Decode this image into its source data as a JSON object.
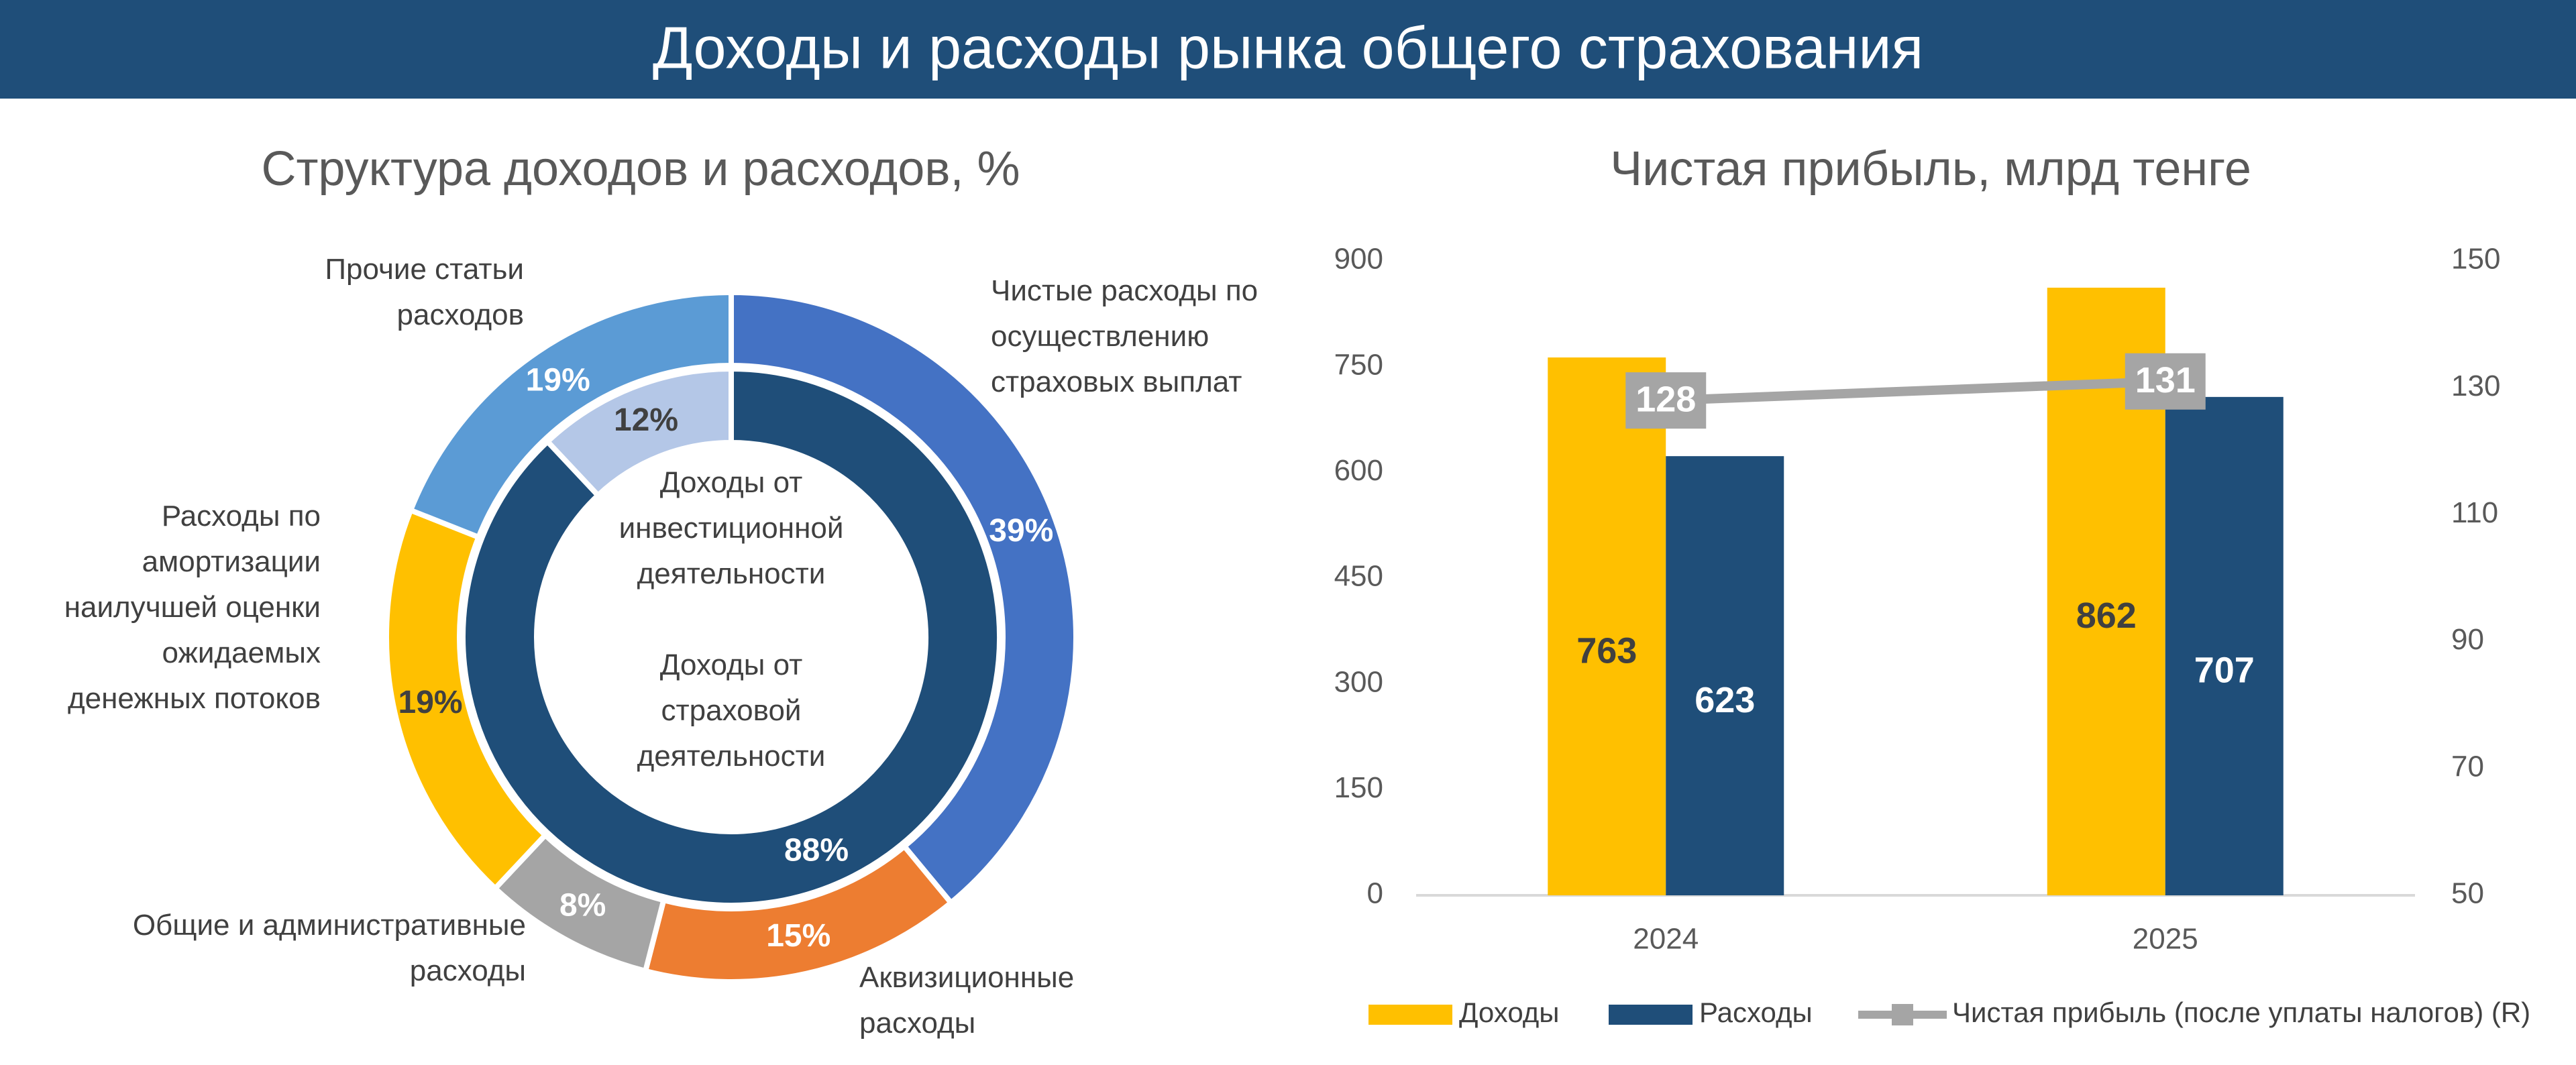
{
  "header": {
    "title": "Доходы и расходы рынка общего страхования"
  },
  "chart_data": [
    {
      "type": "donut",
      "title": "Структура доходов и расходов, %",
      "series": [
        {
          "categories": [
            "Чистые расходы по осуществлению страховых выплат",
            "Аквизиционные расходы",
            "Общие и административные расходы",
            "Расходы по амортизации наилучшей оценки ожидаемых денежных потоков",
            "Прочие статьи расходов"
          ],
          "values": [
            39,
            15,
            8,
            19,
            19
          ],
          "value_labels": [
            "39%",
            "15%",
            "8%",
            "19%",
            "19%"
          ],
          "colors": [
            "#4472c4",
            "#ed7d31",
            "#a5a5a5",
            "#ffc000",
            "#5b9bd5"
          ]
        },
        {
          "categories": [
            "Доходы от страховой деятельности",
            "Доходы от инвестиционной деятельности"
          ],
          "values": [
            88,
            12
          ],
          "value_labels": [
            "88%",
            "12%"
          ],
          "colors": [
            "#1f4e79",
            "#b4c7e7"
          ]
        }
      ]
    },
    {
      "type": "bar",
      "title": "Чистая прибыль, млрд тенге",
      "categories": [
        "2024",
        "2025"
      ],
      "series": [
        {
          "name": "Доходы",
          "type": "bar",
          "color": "#ffc000",
          "values": [
            763,
            862
          ]
        },
        {
          "name": "Расходы",
          "type": "bar",
          "color": "#1f4e79",
          "values": [
            623,
            707
          ]
        },
        {
          "name": "Чистая прибыль (после уплаты налогов) (R)",
          "type": "line",
          "axis": "y2",
          "color": "#a5a5a5",
          "values": [
            128,
            131
          ]
        }
      ],
      "ylim": [
        0,
        900
      ],
      "yticks": [
        0,
        150,
        300,
        450,
        600,
        750,
        900
      ],
      "y2lim": [
        50,
        150
      ],
      "y2ticks": [
        50,
        70,
        90,
        110,
        130,
        150
      ]
    }
  ]
}
